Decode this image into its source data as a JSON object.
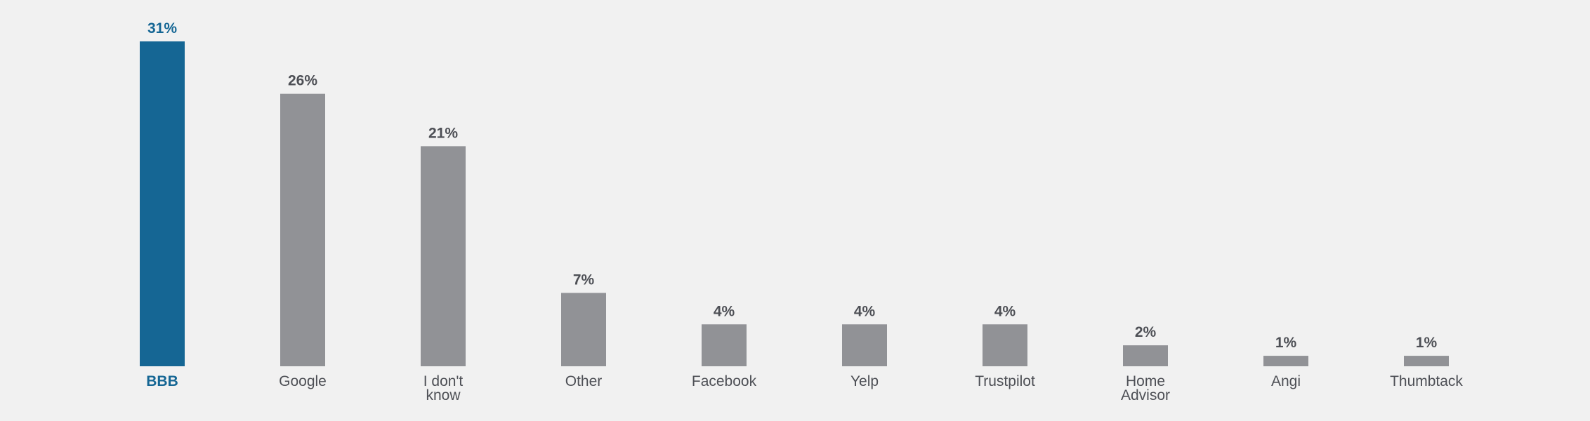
{
  "chart_data": {
    "type": "bar",
    "title": "",
    "xlabel": "",
    "ylabel": "",
    "ylim": [
      0,
      31
    ],
    "grid": false,
    "legend": "none",
    "value_suffix": "%",
    "categories": [
      [
        "BBB"
      ],
      [
        "Google"
      ],
      [
        "I don't",
        "know"
      ],
      [
        "Other"
      ],
      [
        "Facebook"
      ],
      [
        "Yelp"
      ],
      [
        "Trustpilot"
      ],
      [
        "Home",
        "Advisor"
      ],
      [
        "Angi"
      ],
      [
        "Thumbtack"
      ]
    ],
    "values": [
      31,
      26,
      21,
      7,
      4,
      4,
      4,
      2,
      1,
      1
    ],
    "value_labels": [
      "31%",
      "26%",
      "21%",
      "7%",
      "4%",
      "4%",
      "4%",
      "2%",
      "1%",
      "1%"
    ],
    "highlight_index": 0,
    "colors": {
      "highlight_bar": "#156694",
      "bar": "#919296",
      "highlight_text": "#156694",
      "text": "#4d4f55",
      "background": "#f1f1f1"
    }
  }
}
